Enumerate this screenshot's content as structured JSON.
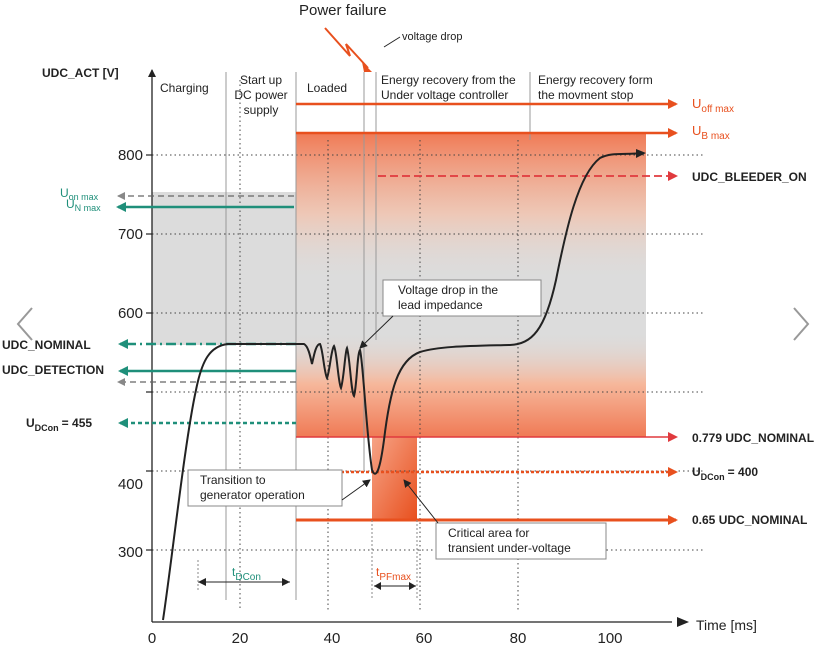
{
  "title": "Power failure",
  "y_axis_label": "UDC_ACT [V]",
  "x_axis_label": "Time [ms]",
  "x_ticks": [
    "0",
    "20",
    "40",
    "60",
    "80",
    "100"
  ],
  "y_ticks": [
    "300",
    "400",
    "500",
    "600",
    "700",
    "800"
  ],
  "phases": {
    "charging": "Charging",
    "startup_1": "Start up",
    "startup_2": "DC power",
    "startup_3": "supply",
    "loaded": "Loaded",
    "voltage_drop": "voltage drop",
    "recovery1_1": "Energy recovery from the",
    "recovery1_2": "Under voltage controller",
    "recovery2_1": "Energy recovery form",
    "recovery2_2": "the movment stop"
  },
  "right_labels": {
    "uoff_main": "U",
    "uoff_sub": "off max",
    "ub_main": "U",
    "ub_sub": "B max",
    "bleeder": "UDC_BLEEDER_ON",
    "udc_779": "0.779 UDC_NOMINAL",
    "udcon400_main": "U",
    "udcon400_sub": "DCon",
    "udcon400_val": "= 400",
    "udc_065": "0.65 UDC_NOMINAL"
  },
  "left_labels": {
    "uon_main": "U",
    "uon_sub": "on max",
    "un_main": "U",
    "un_sub": "N max",
    "nominal": "UDC_NOMINAL",
    "detection": "UDC_DETECTION",
    "udcon455_main": "U",
    "udcon455_sub": "DCon",
    "udcon455_val": "= 455"
  },
  "callouts": {
    "drop_1": "Voltage drop in the",
    "drop_2": "lead impedance",
    "gen_1": "Transition to",
    "gen_2": "generator operation",
    "crit_1": "Critical area for",
    "crit_2": "transient under-voltage"
  },
  "intervals": {
    "tdcon_main": "t",
    "tdcon_sub": "DCon",
    "tpf_main": "t",
    "tpf_sub": "PFmax"
  },
  "colors": {
    "orange": "#e8501e",
    "teal": "#1f8f7a",
    "red_dash": "#e03a3e",
    "grey_band": "#dcdcdc"
  },
  "icons": {
    "prev": "chevron-left-icon",
    "next": "chevron-right-icon"
  }
}
